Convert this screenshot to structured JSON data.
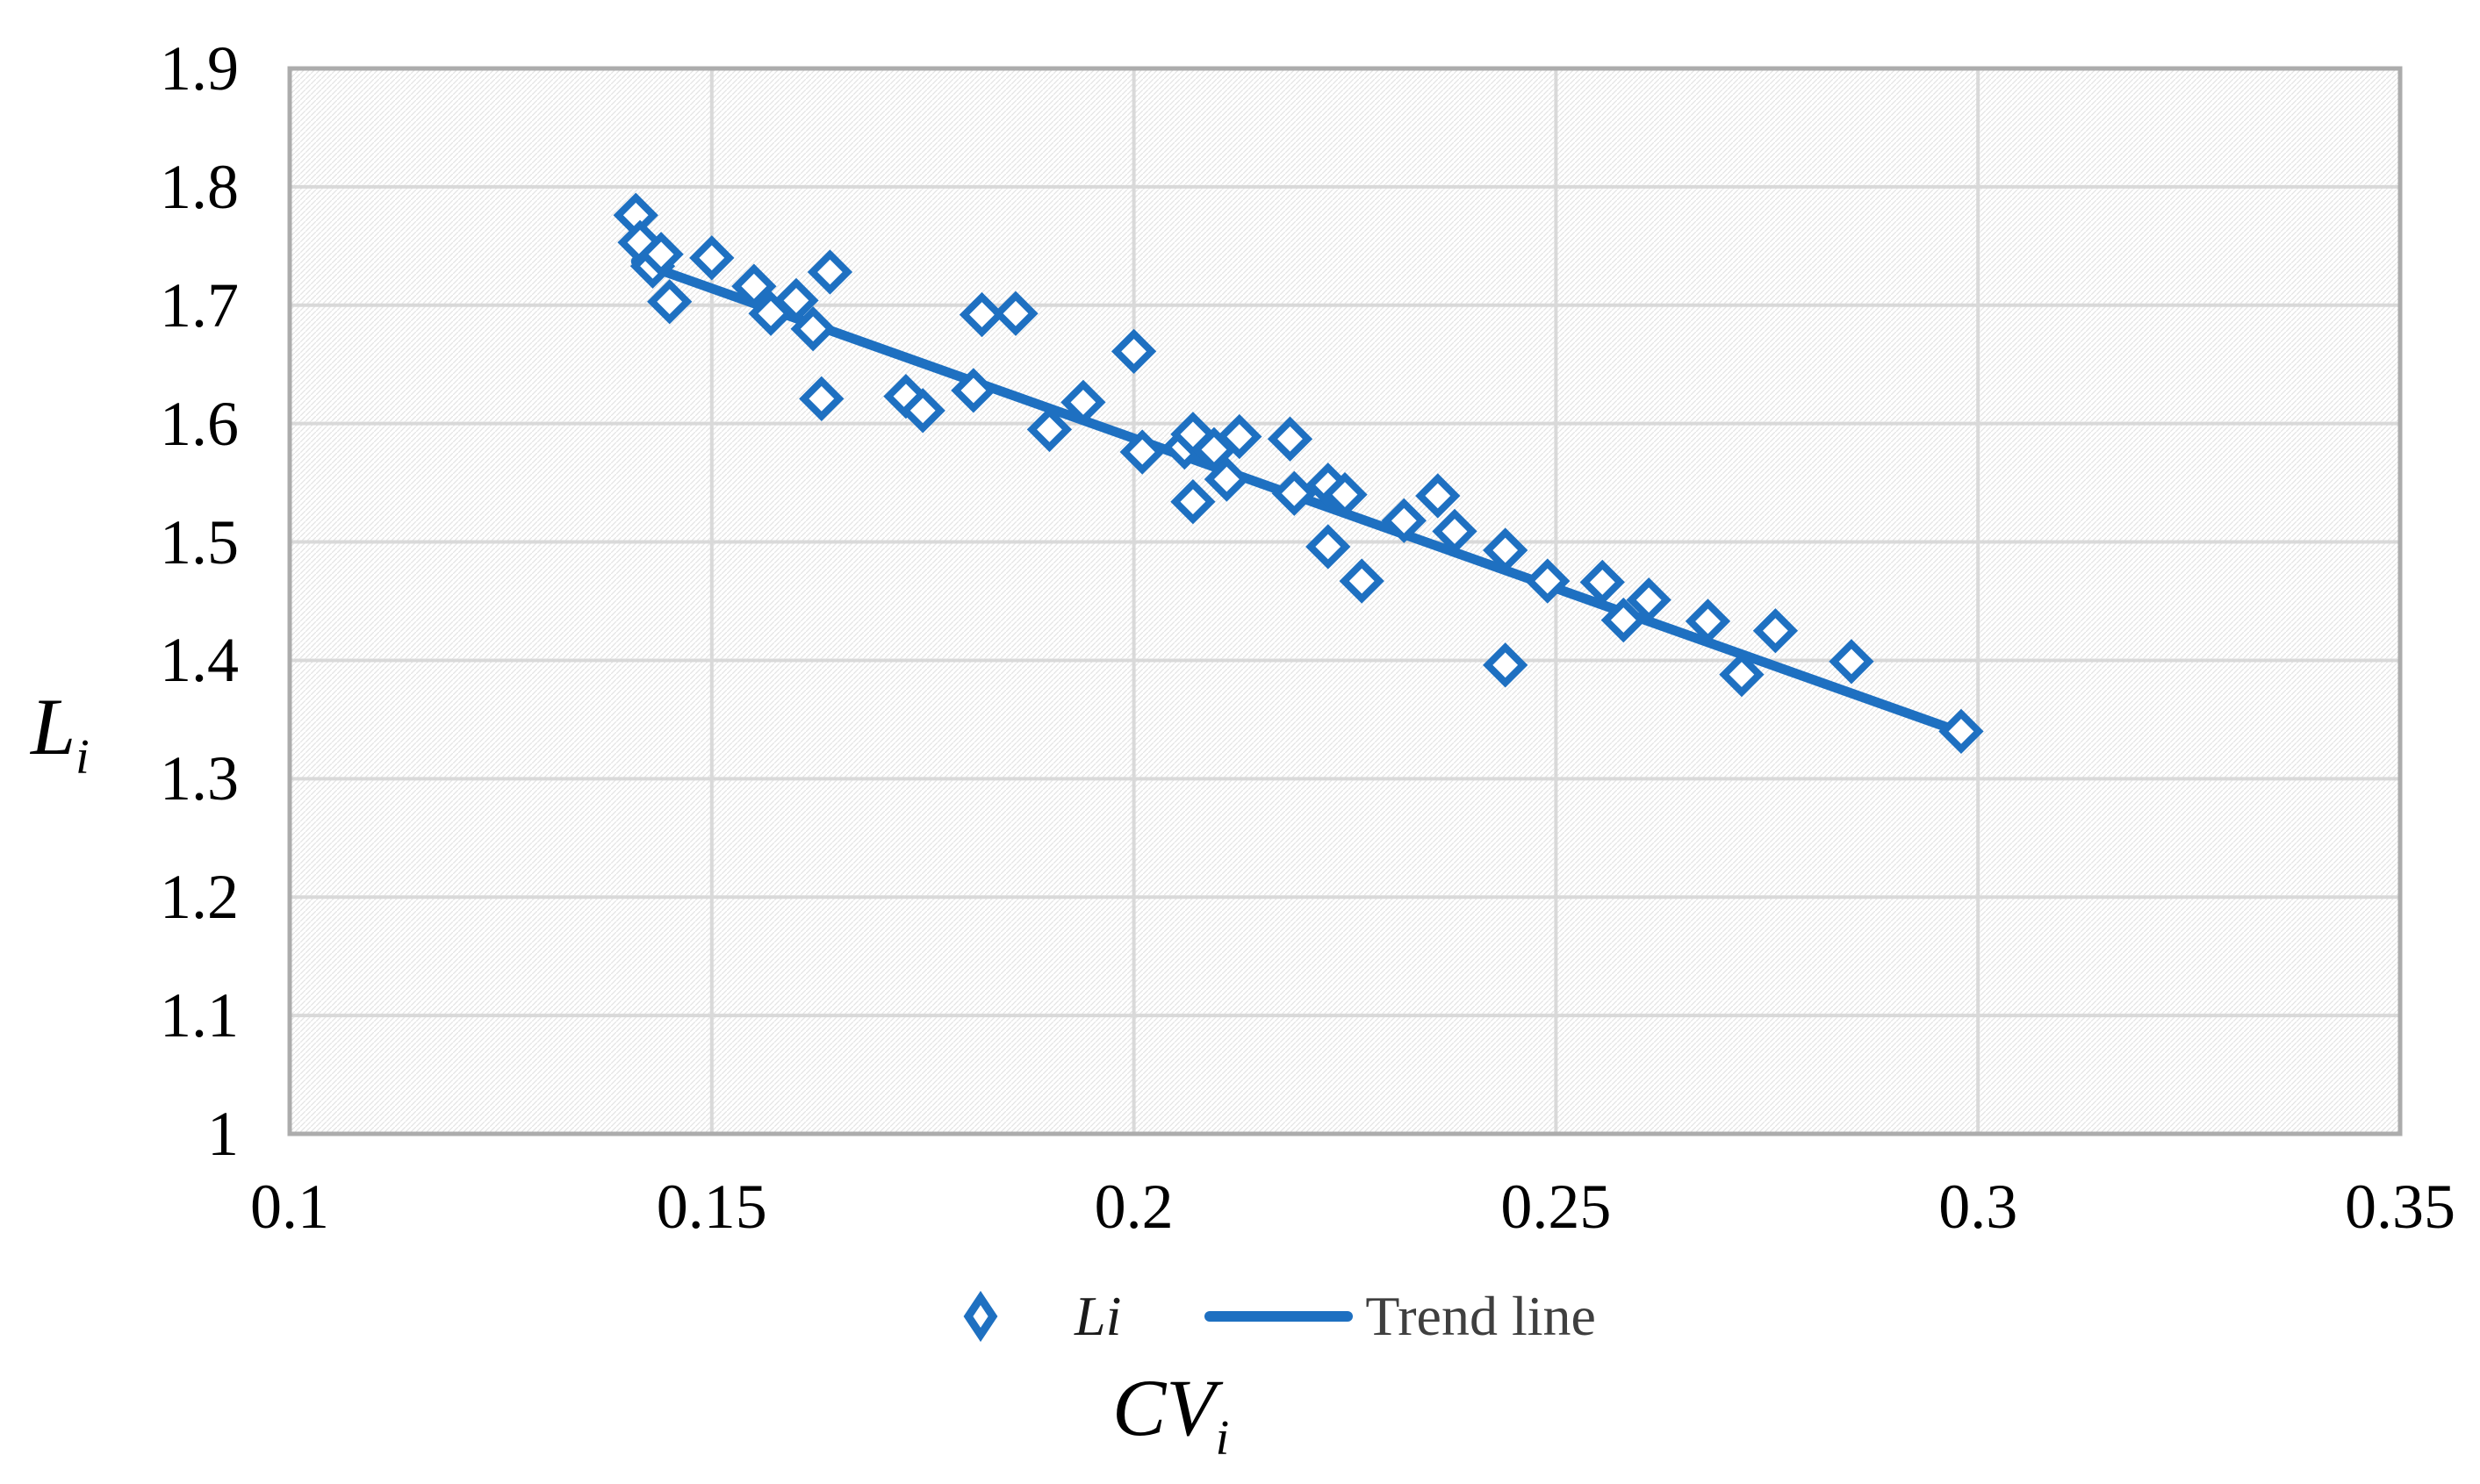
{
  "figure": {
    "y_axis_title": {
      "main": "L",
      "sub": "i"
    },
    "x_axis_title": {
      "main": "CV",
      "sub": "i"
    }
  },
  "legend": {
    "series_label": "Li",
    "trend_label": "Trend line"
  },
  "colors": {
    "series_blue": "#1E70C1",
    "gridline": "#D9D9D9",
    "plot_border": "#ACACAC",
    "hatch": "#cfcfcf",
    "tick_text": "#000000",
    "legend_text": "#3F3F3F"
  },
  "chart_data": {
    "type": "scatter",
    "title": "",
    "xlabel": "CV_i",
    "ylabel": "L_i",
    "xlim": [
      0.1,
      0.35
    ],
    "ylim": [
      1.0,
      1.9
    ],
    "grid": true,
    "legend_position": "bottom-center",
    "x_ticks": [
      {
        "v": 0.1,
        "label": "0.1"
      },
      {
        "v": 0.15,
        "label": "0.15"
      },
      {
        "v": 0.2,
        "label": "0.2"
      },
      {
        "v": 0.25,
        "label": "0.25"
      },
      {
        "v": 0.3,
        "label": "0.3"
      },
      {
        "v": 0.35,
        "label": "0.35"
      }
    ],
    "y_ticks": [
      {
        "v": 1.0,
        "label": "1"
      },
      {
        "v": 1.1,
        "label": "1.1"
      },
      {
        "v": 1.2,
        "label": "1.2"
      },
      {
        "v": 1.3,
        "label": "1.3"
      },
      {
        "v": 1.4,
        "label": "1.4"
      },
      {
        "v": 1.5,
        "label": "1.5"
      },
      {
        "v": 1.6,
        "label": "1.6"
      },
      {
        "v": 1.7,
        "label": "1.7"
      },
      {
        "v": 1.8,
        "label": "1.8"
      },
      {
        "v": 1.9,
        "label": "1.9"
      }
    ],
    "series": [
      {
        "name": "Li",
        "marker": "open-diamond",
        "color": "#1E70C1",
        "points": [
          [
            0.141,
            1.776
          ],
          [
            0.1415,
            1.753
          ],
          [
            0.143,
            1.733
          ],
          [
            0.144,
            1.743
          ],
          [
            0.145,
            1.703
          ],
          [
            0.15,
            1.74
          ],
          [
            0.155,
            1.716
          ],
          [
            0.157,
            1.693
          ],
          [
            0.16,
            1.704
          ],
          [
            0.162,
            1.68
          ],
          [
            0.163,
            1.621
          ],
          [
            0.164,
            1.728
          ],
          [
            0.173,
            1.623
          ],
          [
            0.175,
            1.611
          ],
          [
            0.181,
            1.628
          ],
          [
            0.182,
            1.692
          ],
          [
            0.186,
            1.693
          ],
          [
            0.19,
            1.595
          ],
          [
            0.194,
            1.618
          ],
          [
            0.2,
            1.661
          ],
          [
            0.201,
            1.576
          ],
          [
            0.206,
            1.58
          ],
          [
            0.207,
            1.591
          ],
          [
            0.207,
            1.534
          ],
          [
            0.2095,
            1.578
          ],
          [
            0.211,
            1.553
          ],
          [
            0.2125,
            1.589
          ],
          [
            0.2185,
            1.587
          ],
          [
            0.219,
            1.541
          ],
          [
            0.223,
            1.548
          ],
          [
            0.223,
            1.496
          ],
          [
            0.225,
            1.54
          ],
          [
            0.227,
            1.467
          ],
          [
            0.232,
            1.518
          ],
          [
            0.236,
            1.539
          ],
          [
            0.238,
            1.509
          ],
          [
            0.244,
            1.493
          ],
          [
            0.244,
            1.396
          ],
          [
            0.249,
            1.467
          ],
          [
            0.2555,
            1.466
          ],
          [
            0.258,
            1.434
          ],
          [
            0.261,
            1.451
          ],
          [
            0.268,
            1.433
          ],
          [
            0.272,
            1.388
          ],
          [
            0.276,
            1.425
          ],
          [
            0.285,
            1.399
          ],
          [
            0.298,
            1.34
          ]
        ]
      }
    ],
    "trend_line": {
      "label": "Trend line",
      "color": "#1E70C1",
      "x_range": [
        0.141,
        0.2975
      ],
      "y_range": [
        1.737,
        1.3405
      ]
    }
  }
}
